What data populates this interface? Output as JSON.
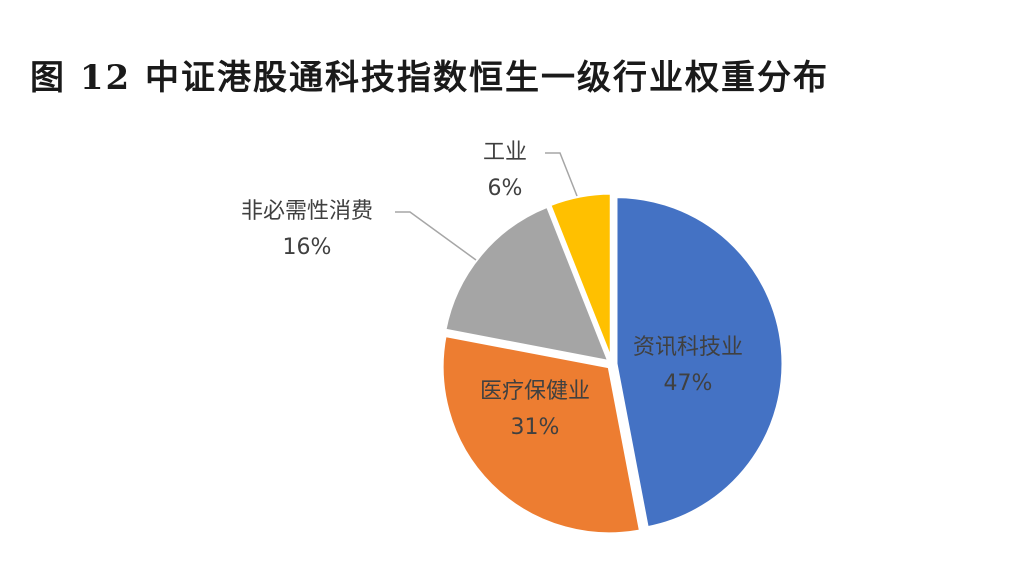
{
  "chart_data": {
    "type": "pie",
    "title": "图 12 中证港股通科技指数恒生一级行业权重分布",
    "categories": [
      "资讯科技业",
      "医疗保健业",
      "非必需性消费",
      "工业"
    ],
    "values": [
      47,
      31,
      16,
      6
    ],
    "value_labels": [
      "47%",
      "31%",
      "16%",
      "6%"
    ],
    "colors": [
      "#4472c4",
      "#ed7d31",
      "#a5a5a5",
      "#ffc000"
    ]
  }
}
